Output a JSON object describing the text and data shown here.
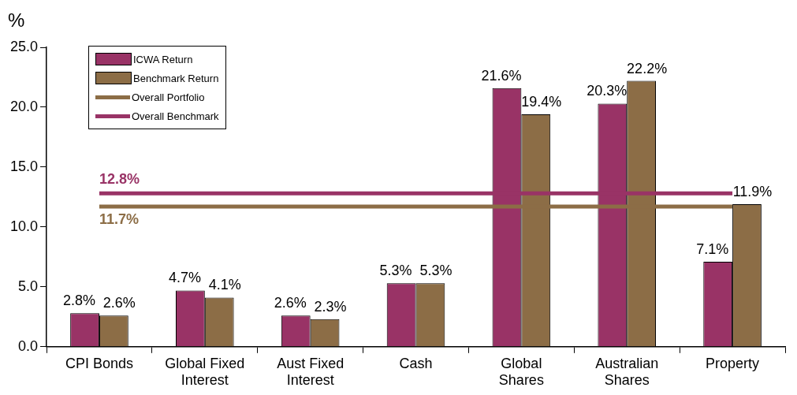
{
  "chart_data": {
    "type": "bar",
    "ylabel": "%",
    "categories": [
      "CPI Bonds",
      "Global Fixed Interest",
      "Aust Fixed Interest",
      "Cash",
      "Global Shares",
      "Australian Shares",
      "Property"
    ],
    "ylim": [
      0,
      25
    ],
    "yticks": [
      {
        "value": 0,
        "label": "0.0"
      },
      {
        "value": 5,
        "label": "5.0"
      },
      {
        "value": 10,
        "label": "10.0"
      },
      {
        "value": 15,
        "label": "15.0"
      },
      {
        "value": 20,
        "label": "20.0"
      },
      {
        "value": 25,
        "label": "25.0"
      }
    ],
    "grid": false,
    "legend": "top left",
    "series": [
      {
        "name": "ICWA Return",
        "color": "#993366",
        "values": [
          2.8,
          4.7,
          2.6,
          5.3,
          21.6,
          20.3,
          7.1
        ],
        "value_labels": [
          "2.8%",
          "4.7%",
          "2.6%",
          "5.3%",
          "21.6%",
          "20.3%",
          "7.1%"
        ]
      },
      {
        "name": "Benchmark Return",
        "color": "#8c6d46",
        "values": [
          2.6,
          4.1,
          2.3,
          5.3,
          19.4,
          22.2,
          11.9
        ],
        "value_labels": [
          "2.6%",
          "4.1%",
          "2.3%",
          "5.3%",
          "19.4%",
          "22.2%",
          "11.9%"
        ]
      },
      {
        "name": "Overall Portfolio",
        "type": "line",
        "color": "#8c6d46",
        "values": [
          11.7,
          11.7,
          11.7,
          11.7,
          11.7,
          11.7,
          11.7
        ],
        "value_labels": [
          "11.7%",
          null,
          null,
          null,
          null,
          null,
          null
        ]
      },
      {
        "name": "Overall Benchmark",
        "type": "line",
        "color": "#993366",
        "values": [
          12.8,
          12.8,
          12.8,
          12.8,
          12.8,
          12.8,
          12.8
        ],
        "value_labels": [
          "12.8%",
          null,
          null,
          null,
          null,
          null,
          null
        ]
      }
    ]
  }
}
